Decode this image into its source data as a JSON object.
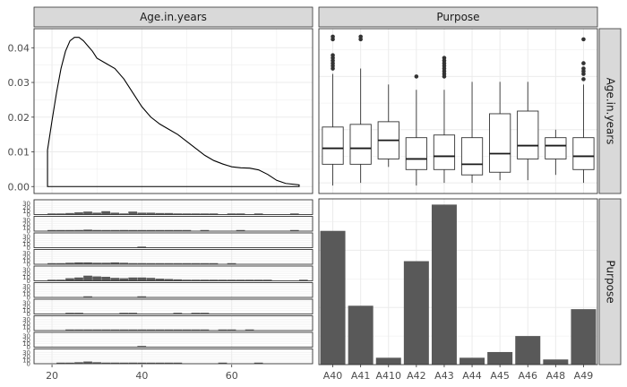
{
  "chart_data": [
    {
      "type": "line",
      "panel": "Age.in.years x Age.in.years",
      "column_strip": "Age.in.years",
      "x": [
        19,
        20,
        21,
        22,
        23,
        24,
        25,
        26,
        27,
        28,
        29,
        30,
        32,
        34,
        36,
        38,
        40,
        42,
        44,
        46,
        48,
        50,
        52,
        54,
        56,
        58,
        60,
        62,
        64,
        66,
        68,
        70,
        72,
        75
      ],
      "y": [
        0.0105,
        0.019,
        0.027,
        0.034,
        0.039,
        0.042,
        0.043,
        0.043,
        0.042,
        0.0405,
        0.039,
        0.037,
        0.0355,
        0.034,
        0.031,
        0.027,
        0.023,
        0.02,
        0.018,
        0.0165,
        0.015,
        0.013,
        0.011,
        0.009,
        0.0075,
        0.0065,
        0.0057,
        0.0054,
        0.0053,
        0.0048,
        0.0035,
        0.0018,
        0.0009,
        0.0005
      ],
      "xlim": [
        16,
        78
      ],
      "ylim": [
        -0.002,
        0.0455
      ],
      "yticks": [
        "0.00",
        "0.01",
        "0.02",
        "0.03",
        "0.04"
      ]
    },
    {
      "type": "boxplot",
      "panel": "Age.in.years x Purpose",
      "column_strip": "Purpose",
      "row_strip": "Age.in.years",
      "categories": [
        "A40",
        "A41",
        "A410",
        "A42",
        "A43",
        "A44",
        "A45",
        "A46",
        "A48",
        "A49"
      ],
      "boxes": [
        {
          "min": 19,
          "q1": 27,
          "median": 33,
          "q3": 41,
          "max": 61,
          "outliers": [
            63,
            64,
            65,
            66,
            67,
            68,
            74,
            75
          ]
        },
        {
          "min": 20,
          "q1": 27,
          "median": 33,
          "q3": 42,
          "max": 63,
          "outliers": [
            74,
            75
          ]
        },
        {
          "min": 26,
          "q1": 29,
          "median": 36,
          "q3": 43,
          "max": 57,
          "outliers": []
        },
        {
          "min": 19,
          "q1": 25,
          "median": 29,
          "q3": 37,
          "max": 55,
          "outliers": [
            60
          ]
        },
        {
          "min": 20,
          "q1": 25,
          "median": 30,
          "q3": 38,
          "max": 55,
          "outliers": [
            60,
            61,
            62,
            63,
            64,
            65,
            66,
            67
          ]
        },
        {
          "min": 20,
          "q1": 23,
          "median": 27,
          "q3": 37,
          "max": 58,
          "outliers": []
        },
        {
          "min": 21,
          "q1": 24,
          "median": 31,
          "q3": 46,
          "max": 58,
          "outliers": []
        },
        {
          "min": 21,
          "q1": 29,
          "median": 34,
          "q3": 47,
          "max": 58,
          "outliers": []
        },
        {
          "min": 23,
          "q1": 29,
          "median": 34,
          "q3": 37,
          "max": 40,
          "outliers": []
        },
        {
          "min": 20,
          "q1": 25,
          "median": 30,
          "q3": 37,
          "max": 57,
          "outliers": [
            59,
            61,
            62,
            63,
            65,
            74
          ]
        }
      ],
      "ylim": [
        16,
        78
      ]
    },
    {
      "type": "bar",
      "panel": "Purpose x Age.in.years",
      "row_strip": "Purpose",
      "subtype": "faceted histogram (one row per purpose level)",
      "rows": [
        "A40",
        "A41",
        "A410",
        "A42",
        "A43",
        "A44",
        "A45",
        "A46",
        "A48",
        "A49"
      ],
      "bins": [
        19,
        21,
        23,
        25,
        27,
        29,
        31,
        33,
        35,
        37,
        39,
        41,
        43,
        45,
        47,
        49,
        51,
        53,
        55,
        57,
        59,
        61,
        63,
        65,
        67,
        69,
        71,
        73,
        75
      ],
      "counts": [
        [
          1,
          1,
          4,
          6,
          8,
          5,
          9,
          5,
          3,
          8,
          5,
          5,
          4,
          4,
          3,
          2,
          2,
          1,
          2,
          0,
          2,
          1,
          0,
          1,
          0,
          0,
          0,
          1,
          0
        ],
        [
          1,
          1,
          2,
          3,
          4,
          3,
          2,
          2,
          3,
          2,
          2,
          1,
          1,
          1,
          1,
          1,
          0,
          1,
          0,
          0,
          0,
          1,
          0,
          0,
          0,
          0,
          0,
          1,
          0
        ],
        [
          0,
          0,
          0,
          0,
          0,
          0,
          0,
          0,
          0,
          0,
          1,
          0,
          0,
          0,
          0,
          0,
          0,
          0,
          0,
          0,
          0,
          0,
          0,
          0,
          0,
          0,
          0,
          0,
          0
        ],
        [
          1,
          2,
          4,
          5,
          5,
          4,
          4,
          5,
          4,
          3,
          3,
          2,
          2,
          2,
          1,
          1,
          1,
          1,
          1,
          0,
          1,
          0,
          0,
          0,
          0,
          0,
          0,
          0,
          0
        ],
        [
          1,
          3,
          7,
          9,
          14,
          12,
          11,
          8,
          7,
          9,
          9,
          8,
          6,
          5,
          4,
          3,
          3,
          3,
          3,
          2,
          1,
          1,
          2,
          1,
          1,
          0,
          0,
          0,
          1
        ],
        [
          0,
          0,
          0,
          0,
          1,
          0,
          0,
          0,
          0,
          0,
          1,
          0,
          0,
          0,
          0,
          0,
          0,
          0,
          0,
          0,
          0,
          0,
          0,
          0,
          0,
          0,
          0,
          0,
          0
        ],
        [
          0,
          0,
          1,
          1,
          0,
          0,
          0,
          0,
          1,
          1,
          0,
          0,
          0,
          0,
          1,
          0,
          1,
          1,
          0,
          0,
          0,
          0,
          0,
          0,
          0,
          0,
          0,
          0,
          0
        ],
        [
          0,
          0,
          1,
          1,
          1,
          1,
          1,
          1,
          1,
          2,
          2,
          1,
          1,
          1,
          1,
          1,
          1,
          1,
          0,
          1,
          1,
          0,
          1,
          0,
          0,
          0,
          0,
          0,
          0
        ],
        [
          0,
          0,
          0,
          0,
          0,
          0,
          0,
          0,
          0,
          0,
          1,
          0,
          0,
          0,
          0,
          0,
          0,
          0,
          0,
          0,
          0,
          0,
          0,
          0,
          0,
          0,
          0,
          0,
          0
        ],
        [
          0,
          1,
          2,
          4,
          6,
          4,
          3,
          3,
          2,
          3,
          2,
          1,
          1,
          1,
          1,
          0,
          0,
          0,
          0,
          1,
          0,
          0,
          0,
          1,
          0,
          0,
          0,
          0,
          0
        ]
      ],
      "ylim": [
        0,
        40
      ],
      "yticks": [
        "0",
        "10",
        "20",
        "30"
      ],
      "xlim": [
        16,
        78
      ]
    },
    {
      "type": "bar",
      "panel": "Purpose x Purpose",
      "row_strip": "Purpose",
      "categories": [
        "A40",
        "A41",
        "A410",
        "A42",
        "A43",
        "A44",
        "A45",
        "A46",
        "A48",
        "A49"
      ],
      "values": [
        234,
        103,
        12,
        181,
        280,
        12,
        22,
        50,
        9,
        97
      ],
      "ylim": [
        0,
        290
      ]
    }
  ],
  "shared_axes": {
    "x_bottom_left_ticks": [
      "20",
      "40",
      "60"
    ],
    "x_bottom_left_tick_values": [
      20,
      40,
      60
    ],
    "x_bottom_right_ticks": [
      "A40",
      "A41",
      "A410",
      "A42",
      "A43",
      "A44",
      "A45",
      "A46",
      "A48",
      "A49"
    ]
  },
  "strips": {
    "top_left": "Age.in.years",
    "top_right": "Purpose",
    "right_top": "Age.in.years",
    "right_bottom": "Purpose"
  },
  "colors": {
    "panel_border": "#333333",
    "grid": "#ebebeb",
    "strip_fill": "#d9d9d9",
    "bar_fill": "#595959",
    "line": "#000000",
    "text": "#4d4d4d"
  }
}
